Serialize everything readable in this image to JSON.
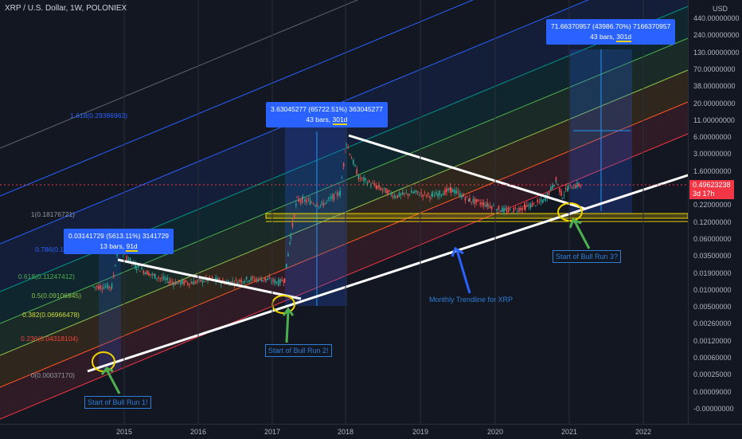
{
  "symbol": "XRP / U.S. Dollar, 1W, POLONIEX",
  "axis_unit": "USD",
  "colors": {
    "bg": "#131722",
    "white": "#ffffff",
    "blue": "#2962ff",
    "red": "#f23645",
    "green": "#26a69a",
    "yellow": "#f0d400"
  },
  "price_labels": [
    "440.00000000",
    "240.00000000",
    "130.00000000",
    "70.00000000",
    "38.00000000",
    "20.00000000",
    "11.00000000",
    "6.00000000",
    "3.00000000",
    "1.60000000",
    "0.80000000",
    "0.22000000",
    "0.12000000",
    "0.06000000",
    "0.03500000",
    "0.01900000",
    "0.01000000",
    "0.00500000",
    "0.00260000",
    "0.00120000",
    "0.00060000",
    "0.00025000",
    "0.00009000",
    "-0.00000000"
  ],
  "current_price": {
    "value": "0.49623238",
    "countdown": "3d 17h"
  },
  "year_labels": [
    "2015",
    "2016",
    "2017",
    "2018",
    "2019",
    "2020",
    "2021",
    "2022"
  ],
  "fib_levels": [
    {
      "label": "1.618(0.29386963)",
      "color": "#2962ff"
    },
    {
      "label": "1(0.18176721)",
      "color": "#9598a1"
    },
    {
      "label": "0.786(0.1",
      "color": "#2962ff"
    },
    {
      "label": "0.618(0.11247412)",
      "color": "#4caf50"
    },
    {
      "label": "0.5(0.09106945)",
      "color": "#8bc34a"
    },
    {
      "label": "0.382(0.06966478)",
      "color": "#cddc39"
    },
    {
      "label": "0.236(0.04318104)",
      "color": "#f44336"
    },
    {
      "label": "0(0.00037170)",
      "color": "#9598a1"
    }
  ],
  "measurements": [
    {
      "line1": "0.03141729 (5613.11%) 3141729",
      "bars": "13 bars, ",
      "days": "91d"
    },
    {
      "line1": "3.63045277 (65722.51%) 363045277",
      "bars": "43 bars, ",
      "days": "301d"
    },
    {
      "line1": "71.66370957 (43986.70%) 7166370957",
      "bars": "43 bars, ",
      "days": "301d"
    }
  ],
  "annotations": {
    "bull1": "Start of Bull Run 1!",
    "bull2": "Start of Bull Run 2!",
    "bull3": "Start of Bull Run 3?",
    "trend": "Monthly Trendline for XRP"
  },
  "chart_data": {
    "type": "line",
    "title": "",
    "scale": "log",
    "xlabel": "",
    "ylabel": "",
    "series": [
      {
        "x": [
          "2014-08",
          "2014-11",
          "2014-12",
          "2015-03",
          "2015-06",
          "2015-09",
          "2015-12",
          "2016-03",
          "2016-06",
          "2016-09",
          "2016-12",
          "2017-02",
          "2017-03",
          "2017-04",
          "2017-05",
          "2017-06",
          "2017-09",
          "2017-12",
          "2018-01",
          "2018-03",
          "2018-06",
          "2018-09",
          "2018-12",
          "2019-03",
          "2019-06",
          "2019-09",
          "2019-12",
          "2020-03",
          "2020-06",
          "2020-09",
          "2020-11",
          "2020-12",
          "2021-01",
          "2021-03"
        ],
        "y": [
          0.005,
          0.005,
          0.03,
          0.012,
          0.008,
          0.006,
          0.006,
          0.007,
          0.006,
          0.007,
          0.007,
          0.006,
          0.007,
          0.05,
          0.25,
          0.25,
          0.2,
          0.35,
          3.3,
          0.7,
          0.45,
          0.3,
          0.35,
          0.3,
          0.4,
          0.25,
          0.2,
          0.15,
          0.18,
          0.24,
          0.6,
          0.3,
          0.45,
          0.5
        ]
      }
    ]
  }
}
